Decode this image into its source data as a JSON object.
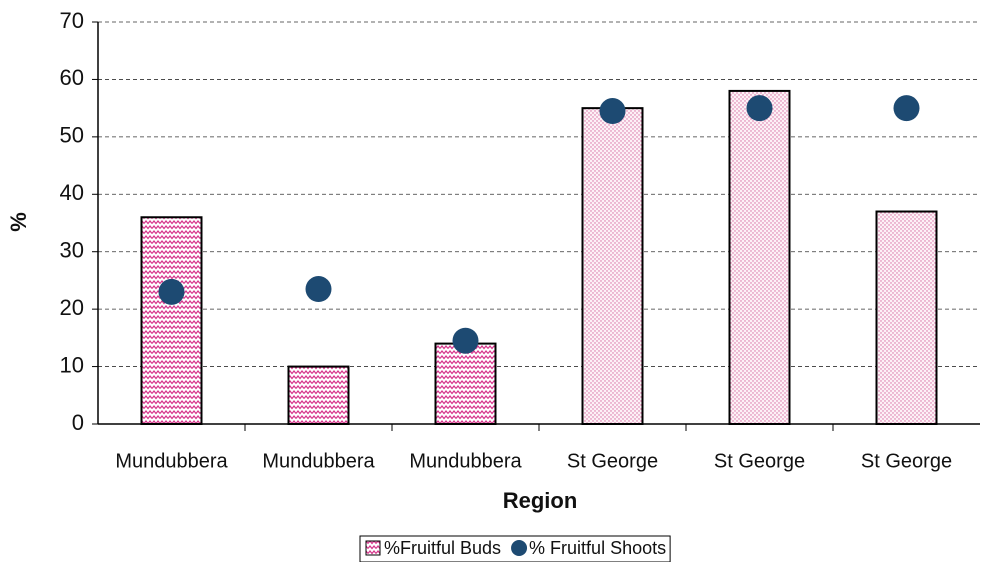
{
  "chart_data": {
    "type": "bar",
    "x_label": "Region",
    "y_label": "%",
    "categories": [
      "Mundubbera",
      "Mundubbera",
      "Mundubbera",
      "St George",
      "St George",
      "St George"
    ],
    "series": [
      {
        "name": "%Fruitful Buds",
        "type": "bar",
        "color": "#d6338a",
        "patterns": [
          "zigzag",
          "zigzag",
          "zigzag",
          "dots",
          "dots",
          "dots"
        ],
        "values": [
          36,
          10,
          14,
          55,
          58,
          37
        ]
      },
      {
        "name": "% Fruitful Shoots",
        "type": "scatter",
        "color": "#1d4a72",
        "values": [
          23,
          23.5,
          14.5,
          54.5,
          55,
          55
        ]
      }
    ],
    "ylim": [
      0,
      70
    ],
    "yticks": [
      0,
      10,
      20,
      30,
      40,
      50,
      60,
      70
    ],
    "grid": true,
    "legend": "bottom"
  }
}
